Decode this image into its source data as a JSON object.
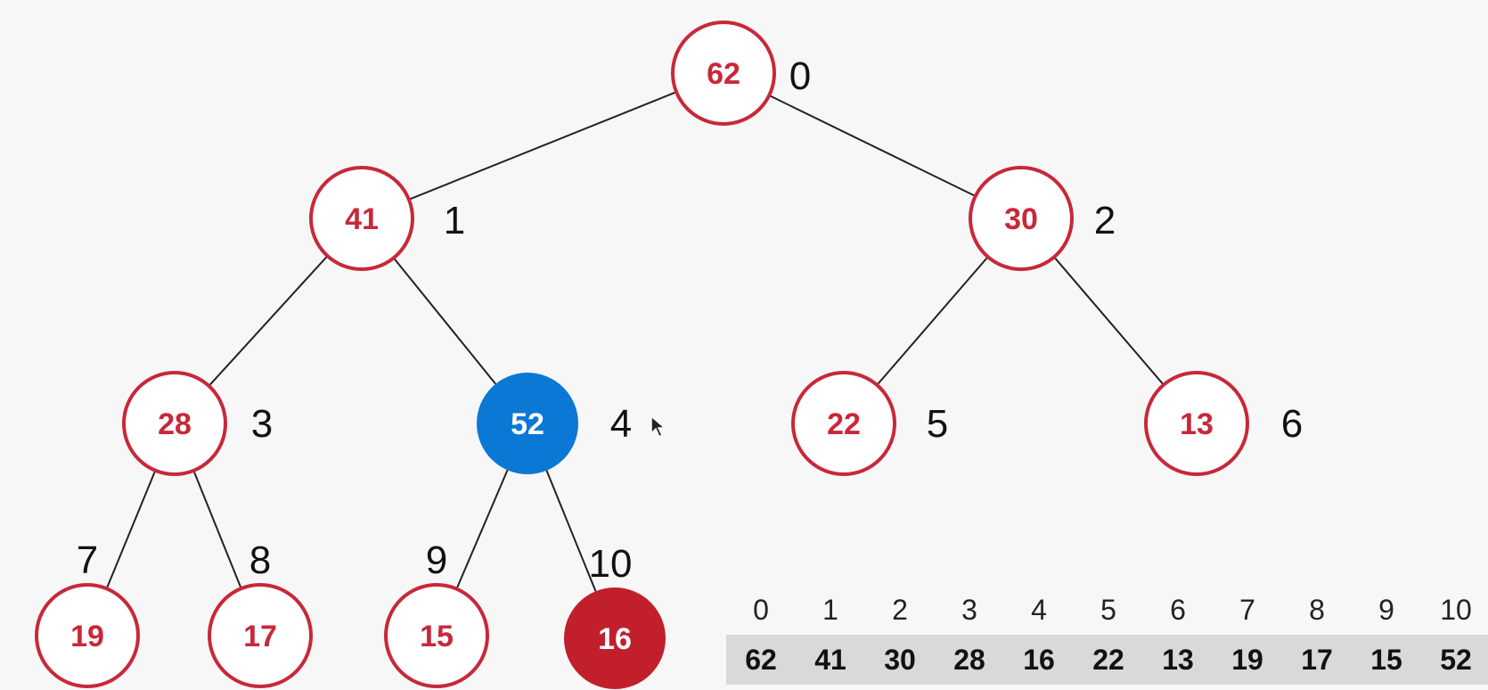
{
  "heap": {
    "nodes": [
      {
        "index": "0",
        "value": "62",
        "state": "normal"
      },
      {
        "index": "1",
        "value": "41",
        "state": "normal"
      },
      {
        "index": "2",
        "value": "30",
        "state": "normal"
      },
      {
        "index": "3",
        "value": "28",
        "state": "normal"
      },
      {
        "index": "4",
        "value": "52",
        "state": "active"
      },
      {
        "index": "5",
        "value": "22",
        "state": "normal"
      },
      {
        "index": "6",
        "value": "13",
        "state": "normal"
      },
      {
        "index": "7",
        "value": "19",
        "state": "normal"
      },
      {
        "index": "8",
        "value": "17",
        "state": "normal"
      },
      {
        "index": "9",
        "value": "15",
        "state": "normal"
      },
      {
        "index": "10",
        "value": "16",
        "state": "removed"
      }
    ],
    "edges": [
      [
        0,
        1
      ],
      [
        0,
        2
      ],
      [
        1,
        3
      ],
      [
        1,
        4
      ],
      [
        2,
        5
      ],
      [
        2,
        6
      ],
      [
        3,
        7
      ],
      [
        3,
        8
      ],
      [
        4,
        9
      ],
      [
        4,
        10
      ]
    ]
  },
  "array": {
    "indices": [
      "0",
      "1",
      "2",
      "3",
      "4",
      "5",
      "6",
      "7",
      "8",
      "9",
      "10"
    ],
    "values": [
      "62",
      "41",
      "30",
      "28",
      "16",
      "22",
      "13",
      "19",
      "17",
      "15",
      "52"
    ]
  },
  "colors": {
    "node_stroke": "#c8283a",
    "node_text": "#c8283a",
    "node_fill": "#ffffff",
    "active_fill": "#0a78d4",
    "removed_fill": "#c11f2c",
    "filled_text": "#ffffff"
  }
}
